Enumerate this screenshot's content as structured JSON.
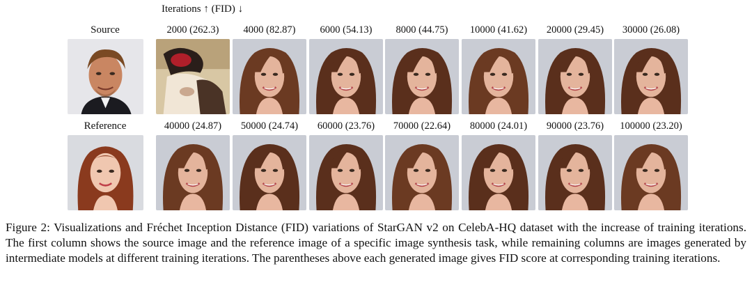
{
  "header": {
    "iterations_label": "Iterations",
    "iterations_arrow": "↑",
    "fid_label": "(FID)",
    "fid_arrow": "↓"
  },
  "rows": [
    {
      "label": "Source",
      "input_image": "source-face",
      "columns": [
        {
          "label": "2000 (262.3)",
          "iterations": 2000,
          "fid": 262.3,
          "image": "generated-face-distorted"
        },
        {
          "label": "4000 (82.87)",
          "iterations": 4000,
          "fid": 82.87,
          "image": "generated-face"
        },
        {
          "label": "6000 (54.13)",
          "iterations": 6000,
          "fid": 54.13,
          "image": "generated-face"
        },
        {
          "label": "8000 (44.75)",
          "iterations": 8000,
          "fid": 44.75,
          "image": "generated-face"
        },
        {
          "label": "10000 (41.62)",
          "iterations": 10000,
          "fid": 41.62,
          "image": "generated-face"
        },
        {
          "label": "20000 (29.45)",
          "iterations": 20000,
          "fid": 29.45,
          "image": "generated-face"
        },
        {
          "label": "30000 (26.08)",
          "iterations": 30000,
          "fid": 26.08,
          "image": "generated-face"
        }
      ]
    },
    {
      "label": "Reference",
      "input_image": "reference-face",
      "columns": [
        {
          "label": "40000 (24.87)",
          "iterations": 40000,
          "fid": 24.87,
          "image": "generated-face"
        },
        {
          "label": "50000 (24.74)",
          "iterations": 50000,
          "fid": 24.74,
          "image": "generated-face"
        },
        {
          "label": "60000 (23.76)",
          "iterations": 60000,
          "fid": 23.76,
          "image": "generated-face"
        },
        {
          "label": "70000 (22.64)",
          "iterations": 70000,
          "fid": 22.64,
          "image": "generated-face"
        },
        {
          "label": "80000 (24.01)",
          "iterations": 80000,
          "fid": 24.01,
          "image": "generated-face"
        },
        {
          "label": "90000 (23.76)",
          "iterations": 90000,
          "fid": 23.76,
          "image": "generated-face"
        },
        {
          "label": "100000 (23.20)",
          "iterations": 100000,
          "fid": 23.2,
          "image": "generated-face"
        }
      ]
    }
  ],
  "caption": "Figure 2: Visualizations and Fréchet Inception Distance (FID) variations of StarGAN v2 on CelebA-HQ dataset with the increase of training iterations. The first column shows the source image and the reference image of a specific image synthesis task, while remaining columns are images generated by intermediate models at different training iterations. The parentheses above each generated image gives FID score at corresponding training iterations.",
  "colors": {
    "background": "#ffffff",
    "text": "#111111",
    "photo_bg": "#c9ccd4",
    "brown_hair": "#5a2f1c",
    "red_hair": "#8a3a1e",
    "skin": "#e4b49c"
  }
}
